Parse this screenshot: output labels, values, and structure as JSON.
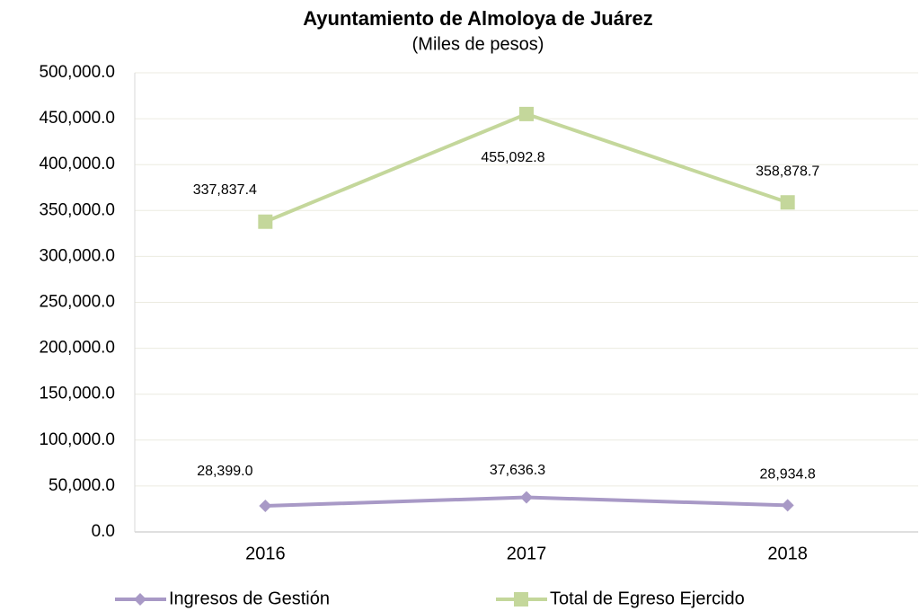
{
  "chart_data": {
    "type": "line",
    "title": "Ayuntamiento de Almoloya de Juárez",
    "subtitle": "(Miles de pesos)",
    "categories": [
      "2016",
      "2017",
      "2018"
    ],
    "series": [
      {
        "name": "Ingresos de Gestión",
        "color": "#a899c6",
        "marker": "diamond",
        "values": [
          28399.0,
          37636.3,
          28934.8
        ],
        "value_labels": [
          "28,399.0",
          "37,636.3",
          "28,934.8"
        ]
      },
      {
        "name": "Total de Egreso Ejercido",
        "color": "#c4d79b",
        "marker": "square",
        "values": [
          337837.4,
          455092.8,
          358878.7
        ],
        "value_labels": [
          "337,837.4",
          "455,092.8",
          "358,878.7"
        ]
      }
    ],
    "ylim": [
      0,
      500000
    ],
    "yticks": [
      {
        "value": 0,
        "label": "0.0"
      },
      {
        "value": 50000,
        "label": "50,000.0"
      },
      {
        "value": 100000,
        "label": "100,000.0"
      },
      {
        "value": 150000,
        "label": "150,000.0"
      },
      {
        "value": 200000,
        "label": "200,000.0"
      },
      {
        "value": 250000,
        "label": "250,000.0"
      },
      {
        "value": 300000,
        "label": "300,000.0"
      },
      {
        "value": 350000,
        "label": "350,000.0"
      },
      {
        "value": 400000,
        "label": "400,000.0"
      },
      {
        "value": 450000,
        "label": "450,000.0"
      },
      {
        "value": 500000,
        "label": "500,000.0"
      }
    ],
    "grid": true,
    "legend": "bottom"
  }
}
